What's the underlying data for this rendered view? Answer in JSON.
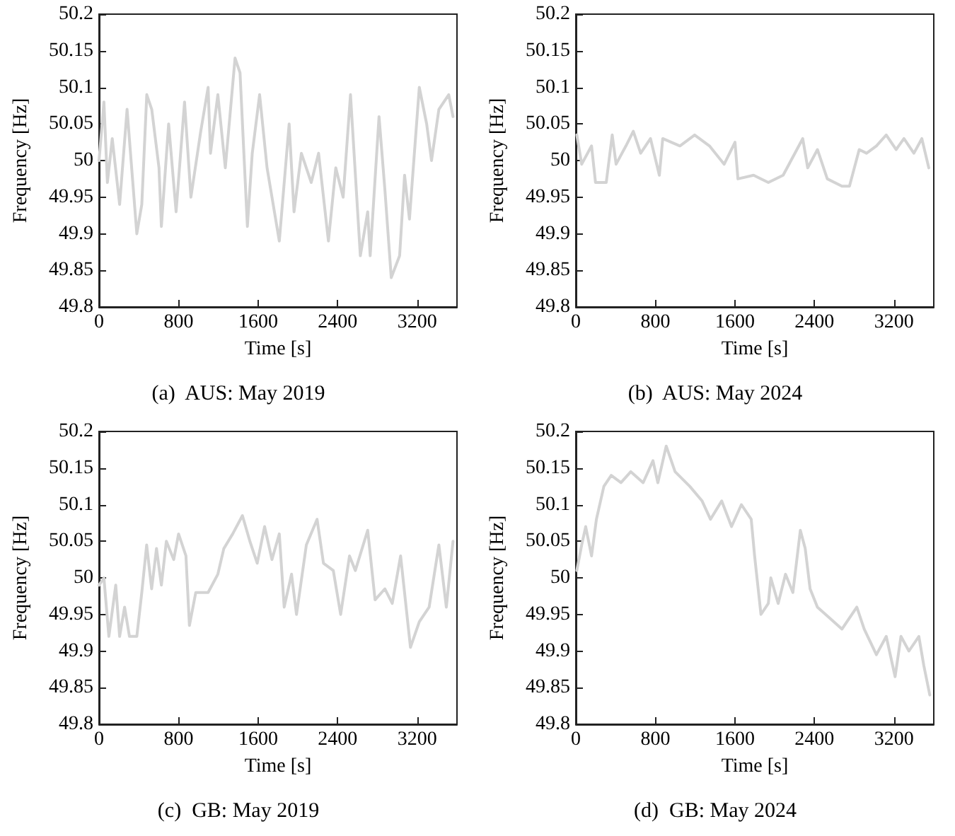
{
  "chart_data": [
    {
      "type": "line",
      "title": "(a)  AUS: May 2019",
      "xlabel": "Time [s]",
      "ylabel": "Frequency [Hz]",
      "xlim": [
        0,
        3600
      ],
      "ylim": [
        49.8,
        50.2
      ],
      "xticks": [
        0,
        800,
        1600,
        2400,
        3200
      ],
      "yticks": [
        49.8,
        49.85,
        49.9,
        49.95,
        50,
        50.05,
        50.1,
        50.15,
        50.2
      ],
      "grid": false,
      "marker": "none",
      "line_style": "solid",
      "series": [
        {
          "color": "#d3d3d3",
          "x": [
            0,
            49,
            84,
            133,
            207,
            282,
            380,
            430,
            480,
            530,
            603,
            627,
            700,
            775,
            860,
            924,
            1023,
            1097,
            1121,
            1195,
            1270,
            1368,
            1418,
            1492,
            1541,
            1615,
            1690,
            1813,
            1912,
            1961,
            2035,
            2134,
            2208,
            2307,
            2381,
            2455,
            2529,
            2628,
            2702,
            2727,
            2816,
            2875,
            2939,
            3023,
            3073,
            3122,
            3221,
            3295,
            3344,
            3418,
            3517,
            3560
          ],
          "values": [
            50.0,
            50.08,
            49.97,
            50.03,
            49.94,
            50.07,
            49.9,
            49.94,
            50.09,
            50.07,
            49.99,
            49.91,
            50.05,
            49.93,
            50.08,
            49.95,
            50.04,
            50.1,
            50.01,
            50.09,
            49.99,
            50.14,
            50.12,
            49.91,
            50.01,
            50.09,
            49.99,
            49.89,
            50.05,
            49.93,
            50.01,
            49.97,
            50.01,
            49.89,
            49.99,
            49.95,
            50.09,
            49.87,
            49.93,
            49.87,
            50.06,
            49.96,
            49.84,
            49.87,
            49.98,
            49.92,
            50.1,
            50.05,
            50.0,
            50.07,
            50.09,
            50.06
          ]
        }
      ]
    },
    {
      "type": "line",
      "title": "(b)  AUS: May 2024",
      "xlabel": "Time [s]",
      "ylabel": "Frequency [Hz]",
      "xlim": [
        0,
        3600
      ],
      "ylim": [
        49.8,
        50.2
      ],
      "xticks": [
        0,
        800,
        1600,
        2400,
        3200
      ],
      "yticks": [
        49.8,
        49.85,
        49.9,
        49.95,
        50,
        50.05,
        50.1,
        50.15,
        50.2
      ],
      "grid": false,
      "marker": "none",
      "line_style": "solid",
      "series": [
        {
          "color": "#d3d3d3",
          "x": [
            10,
            59,
            158,
            198,
            306,
            366,
            405,
            504,
            578,
            652,
            751,
            840,
            874,
            1047,
            1195,
            1344,
            1492,
            1601,
            1630,
            1788,
            1936,
            2085,
            2282,
            2332,
            2430,
            2529,
            2677,
            2752,
            2850,
            2924,
            3023,
            3122,
            3221,
            3300,
            3400,
            3480,
            3550
          ],
          "values": [
            50.035,
            49.995,
            50.02,
            49.97,
            49.97,
            50.035,
            49.995,
            50.02,
            50.04,
            50.01,
            50.03,
            49.98,
            50.03,
            50.02,
            50.035,
            50.02,
            49.995,
            50.025,
            49.975,
            49.98,
            49.97,
            49.98,
            50.03,
            49.99,
            50.015,
            49.975,
            49.965,
            49.965,
            50.015,
            50.01,
            50.02,
            50.035,
            50.015,
            50.03,
            50.01,
            50.03,
            49.99
          ]
        }
      ]
    },
    {
      "type": "line",
      "title": "(c)  GB: May 2019",
      "xlabel": "Time [s]",
      "ylabel": "Frequency [Hz]",
      "xlim": [
        0,
        3600
      ],
      "ylim": [
        49.8,
        50.2
      ],
      "xticks": [
        0,
        800,
        1600,
        2400,
        3200
      ],
      "yticks": [
        49.8,
        49.85,
        49.9,
        49.95,
        50,
        50.05,
        50.1,
        50.15,
        50.2
      ],
      "grid": false,
      "marker": "none",
      "line_style": "solid",
      "series": [
        {
          "color": "#d3d3d3",
          "x": [
            0,
            49,
            99,
            168,
            207,
            257,
            306,
            380,
            430,
            479,
            529,
            578,
            627,
            677,
            751,
            800,
            874,
            909,
            973,
            1097,
            1195,
            1255,
            1344,
            1442,
            1517,
            1591,
            1665,
            1739,
            1813,
            1862,
            1936,
            1986,
            2085,
            2193,
            2257,
            2356,
            2430,
            2519,
            2578,
            2702,
            2776,
            2875,
            2949,
            3033,
            3132,
            3221,
            3320,
            3418,
            3493,
            3560
          ],
          "values": [
            49.99,
            50.0,
            49.92,
            49.99,
            49.92,
            49.96,
            49.92,
            49.92,
            49.98,
            50.045,
            49.985,
            50.04,
            49.99,
            50.05,
            50.025,
            50.06,
            50.03,
            49.935,
            49.98,
            49.98,
            50.005,
            50.04,
            50.06,
            50.085,
            50.05,
            50.02,
            50.07,
            50.025,
            50.06,
            49.96,
            50.005,
            49.95,
            50.045,
            50.08,
            50.02,
            50.01,
            49.95,
            50.03,
            50.01,
            50.065,
            49.97,
            49.985,
            49.965,
            50.03,
            49.905,
            49.94,
            49.96,
            50.045,
            49.96,
            50.05
          ]
        }
      ]
    },
    {
      "type": "line",
      "title": "(d)  GB: May 2024",
      "xlabel": "Time [s]",
      "ylabel": "Frequency [Hz]",
      "xlim": [
        0,
        3600
      ],
      "ylim": [
        49.8,
        50.2
      ],
      "xticks": [
        0,
        800,
        1600,
        2400,
        3200
      ],
      "yticks": [
        49.8,
        49.85,
        49.9,
        49.95,
        50,
        50.05,
        50.1,
        50.15,
        50.2
      ],
      "grid": false,
      "marker": "none",
      "line_style": "solid",
      "series": [
        {
          "color": "#d3d3d3",
          "x": [
            10,
            59,
            99,
            158,
            207,
            282,
            356,
            454,
            553,
            677,
            776,
            825,
            909,
            998,
            1146,
            1270,
            1354,
            1467,
            1566,
            1665,
            1764,
            1798,
            1862,
            1936,
            1961,
            2035,
            2109,
            2183,
            2258,
            2307,
            2356,
            2430,
            2554,
            2677,
            2826,
            2900,
            3023,
            3122,
            3211,
            3270,
            3350,
            3450,
            3500,
            3560
          ],
          "values": [
            50.01,
            50.045,
            50.07,
            50.03,
            50.08,
            50.125,
            50.14,
            50.13,
            50.145,
            50.13,
            50.16,
            50.13,
            50.18,
            50.145,
            50.125,
            50.105,
            50.08,
            50.105,
            50.07,
            50.1,
            50.08,
            50.03,
            49.95,
            49.965,
            50.0,
            49.965,
            50.005,
            49.98,
            50.065,
            50.04,
            49.985,
            49.96,
            49.945,
            49.93,
            49.96,
            49.93,
            49.895,
            49.92,
            49.865,
            49.92,
            49.9,
            49.92,
            49.88,
            49.84
          ]
        }
      ]
    }
  ]
}
